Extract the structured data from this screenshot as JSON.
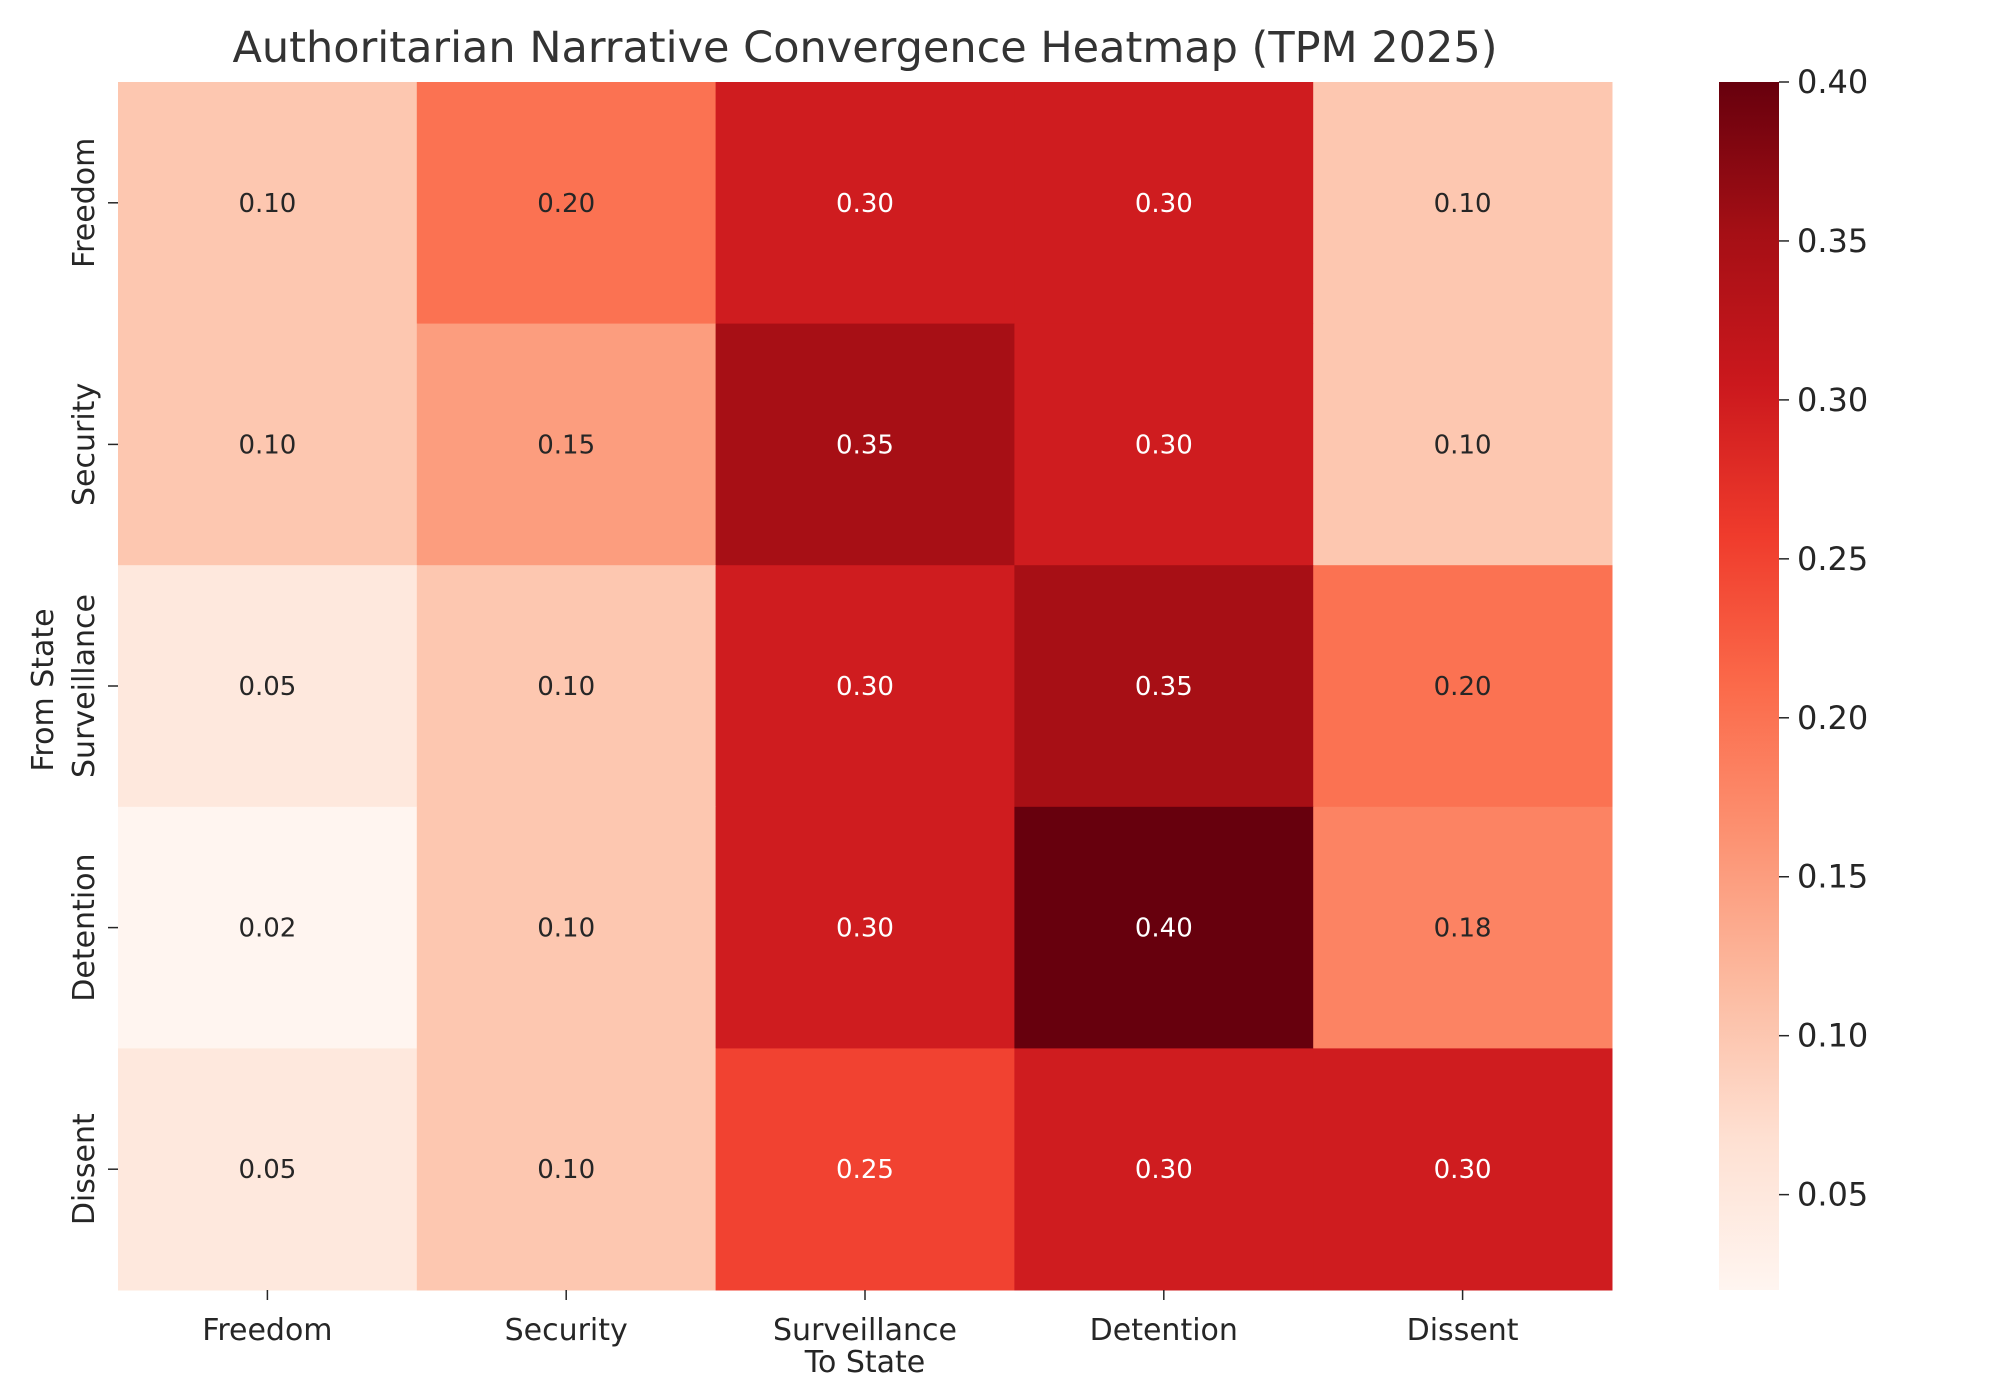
{
  "chart_data": {
    "type": "heatmap",
    "title": "Authoritarian Narrative Convergence Heatmap (TPM 2025)",
    "xlabel": "To State",
    "ylabel": "From State",
    "x_categories": [
      "Freedom",
      "Security",
      "Surveillance",
      "Detention",
      "Dissent"
    ],
    "y_categories": [
      "Freedom",
      "Security",
      "Surveillance",
      "Detention",
      "Dissent"
    ],
    "values": [
      [
        0.1,
        0.2,
        0.3,
        0.3,
        0.1
      ],
      [
        0.1,
        0.15,
        0.35,
        0.3,
        0.1
      ],
      [
        0.05,
        0.1,
        0.3,
        0.35,
        0.2
      ],
      [
        0.02,
        0.1,
        0.3,
        0.4,
        0.18
      ],
      [
        0.05,
        0.1,
        0.25,
        0.3,
        0.3
      ]
    ],
    "value_format": "0.00",
    "colormap": "Reds",
    "color_range": [
      0.02,
      0.4
    ],
    "colorbar_ticks": [
      "0.05",
      "0.10",
      "0.15",
      "0.20",
      "0.25",
      "0.30",
      "0.35",
      "0.40"
    ],
    "colorbar_tick_values": [
      0.05,
      0.1,
      0.15,
      0.2,
      0.25,
      0.3,
      0.35,
      0.4
    ],
    "colors": {
      "text_dark": "#262626",
      "text_light": "#ffffff",
      "title": "#333333"
    }
  }
}
